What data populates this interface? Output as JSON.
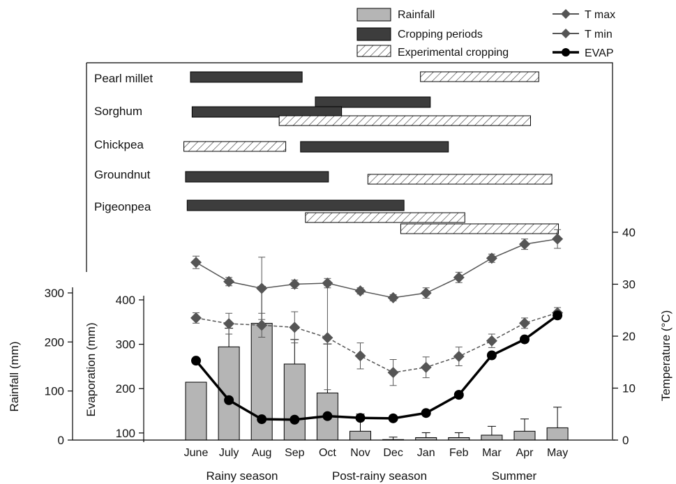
{
  "chart_data": {
    "type": "bar",
    "months": [
      "June",
      "July",
      "Aug",
      "Sep",
      "Oct",
      "Nov",
      "Dec",
      "Jan",
      "Feb",
      "Mar",
      "Apr",
      "May"
    ],
    "season_labels": [
      "Rainy season",
      "Post-rainy season",
      "Summer"
    ],
    "axis_labels": {
      "rainfall": "Rainfall (mm)",
      "evaporation": "Evaporation (mm)",
      "temperature": "Temperature (°C)"
    },
    "axes": {
      "rainfall": {
        "range": [
          0,
          350
        ],
        "ticks": [
          0,
          100,
          200,
          300
        ]
      },
      "evaporation": {
        "range": [
          84,
          400
        ],
        "ticks": [
          100,
          200,
          300,
          400
        ]
      },
      "temperature": {
        "range": [
          0,
          42
        ],
        "ticks": [
          0,
          10,
          20,
          30,
          40
        ]
      }
    },
    "legend": {
      "position": "top-right",
      "items": [
        {
          "label": "Rainfall",
          "style": "bar-gray"
        },
        {
          "label": "Cropping periods",
          "style": "bar-dark"
        },
        {
          "label": "Experimental cropping",
          "style": "bar-hatched"
        },
        {
          "label": "T max",
          "style": "line-diamond"
        },
        {
          "label": "T min",
          "style": "line-diamond-dashed"
        },
        {
          "label": "EVAP",
          "style": "line-bold-dot"
        }
      ]
    },
    "series": [
      {
        "name": "Rainfall",
        "axis": "rainfall",
        "values": [
          118,
          190,
          238,
          155,
          96,
          18,
          1,
          5,
          5,
          10,
          18,
          25
        ],
        "errors": [
          0,
          38,
          75,
          50,
          100,
          35,
          5,
          10,
          10,
          18,
          25,
          42
        ]
      },
      {
        "name": "T max",
        "axis": "temperature",
        "values": [
          34.2,
          30.5,
          29.2,
          30.0,
          30.2,
          28.7,
          27.4,
          28.3,
          31.3,
          35.0,
          37.7,
          38.7
        ],
        "errors": [
          1.2,
          0.8,
          6.0,
          0.8,
          0.9,
          0.6,
          0.6,
          1.0,
          1.0,
          0.8,
          1.0,
          1.8
        ]
      },
      {
        "name": "T min",
        "axis": "temperature",
        "values": [
          23.5,
          22.4,
          22.1,
          21.7,
          19.7,
          16.2,
          13.0,
          14.0,
          16.1,
          19.1,
          22.5,
          24.5
        ],
        "errors": [
          1.0,
          2.0,
          2.3,
          3.0,
          10.0,
          2.5,
          2.5,
          2.0,
          1.8,
          1.3,
          1.0,
          1.0
        ]
      },
      {
        "name": "EVAP",
        "axis": "evaporation",
        "values": [
          263,
          174,
          131,
          130,
          138,
          134,
          133,
          145,
          186,
          275,
          311,
          365
        ],
        "errors": [
          0,
          0,
          0,
          0,
          0,
          0,
          0,
          0,
          0,
          0,
          0,
          8
        ]
      }
    ],
    "cropping": [
      {
        "crop": "Pearl millet",
        "periods": [
          {
            "type": "cropping",
            "start": 0.0,
            "end": 3.4
          },
          {
            "type": "experimental",
            "start": 7.0,
            "end": 10.6
          }
        ]
      },
      {
        "crop": "Sorghum",
        "periods": [
          {
            "type": "cropping",
            "start": 3.8,
            "end": 7.3
          },
          {
            "type": "cropping",
            "start": 0.05,
            "end": 4.6
          },
          {
            "type": "experimental",
            "start": 2.7,
            "end": 10.35
          }
        ]
      },
      {
        "crop": "Chickpea",
        "periods": [
          {
            "type": "experimental",
            "start": -0.2,
            "end": 2.9
          },
          {
            "type": "cropping",
            "start": 3.35,
            "end": 7.85
          }
        ]
      },
      {
        "crop": "Groundnut",
        "periods": [
          {
            "type": "cropping",
            "start": -0.15,
            "end": 4.2
          },
          {
            "type": "experimental",
            "start": 5.4,
            "end": 11.0
          }
        ]
      },
      {
        "crop": "Pigeonpea",
        "periods": [
          {
            "type": "cropping",
            "start": -0.1,
            "end": 6.5
          },
          {
            "type": "experimental",
            "start": 3.5,
            "end": 8.35
          },
          {
            "type": "experimental",
            "start": 6.4,
            "end": 11.2
          }
        ]
      }
    ],
    "colors": {
      "rainfall_bar": "#b5b5b5",
      "cropping_bar": "#3d3d3d",
      "temperature_line": "#555555",
      "evap_line": "#000000",
      "axis": "#000000"
    }
  }
}
